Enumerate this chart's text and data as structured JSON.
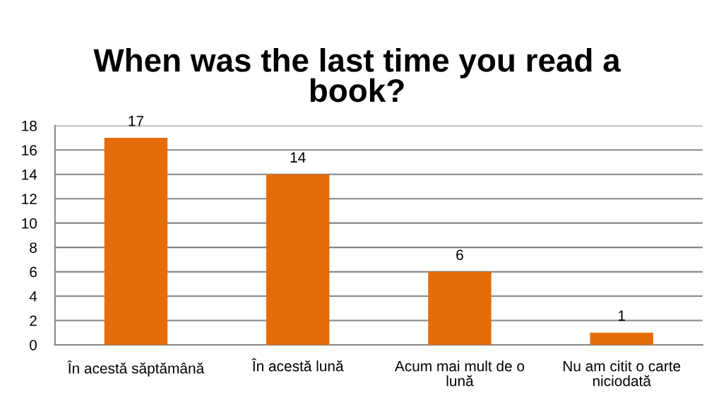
{
  "chart_data": {
    "type": "bar",
    "title": "When was the last time you read a book?",
    "categories": [
      "În acestă săptămână",
      "În acestă lună",
      "Acum mai mult de o lună",
      "Nu am citit o carte niciodată"
    ],
    "values": [
      17,
      14,
      6,
      1
    ],
    "color": "#e46c0a",
    "ylim": [
      0,
      18
    ],
    "yticks": [
      0,
      2,
      4,
      6,
      8,
      10,
      12,
      14,
      16,
      18
    ],
    "grid": "y",
    "data_labels": true,
    "legend": false
  }
}
